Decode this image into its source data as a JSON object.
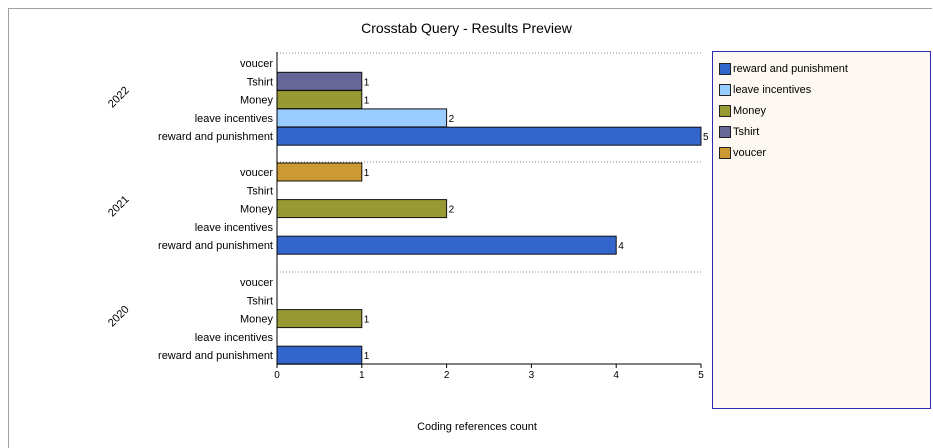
{
  "chart_data": {
    "type": "bar",
    "orientation": "horizontal",
    "title": "Crosstab Query - Results Preview",
    "xlabel": "Coding references count",
    "xlim": [
      0,
      5
    ],
    "xticks": [
      "0",
      "1",
      "2",
      "3",
      "4",
      "5"
    ],
    "groups": [
      {
        "name": "2022",
        "bars": [
          {
            "category": "voucer",
            "value": 0
          },
          {
            "category": "Tshirt",
            "value": 1
          },
          {
            "category": "Money",
            "value": 1
          },
          {
            "category": "leave incentives",
            "value": 2
          },
          {
            "category": "reward and punishment",
            "value": 5
          }
        ]
      },
      {
        "name": "2021",
        "bars": [
          {
            "category": "voucer",
            "value": 1
          },
          {
            "category": "Tshirt",
            "value": 0
          },
          {
            "category": "Money",
            "value": 2
          },
          {
            "category": "leave incentives",
            "value": 0
          },
          {
            "category": "reward and punishment",
            "value": 4
          }
        ]
      },
      {
        "name": "2020",
        "bars": [
          {
            "category": "voucer",
            "value": 0
          },
          {
            "category": "Tshirt",
            "value": 0
          },
          {
            "category": "Money",
            "value": 1
          },
          {
            "category": "leave incentives",
            "value": 0
          },
          {
            "category": "reward and punishment",
            "value": 1
          }
        ]
      }
    ],
    "legend": [
      {
        "name": "reward and punishment",
        "color": "#3366cc"
      },
      {
        "name": "leave incentives",
        "color": "#99ccff"
      },
      {
        "name": "Money",
        "color": "#999933"
      },
      {
        "name": "Tshirt",
        "color": "#666699"
      },
      {
        "name": "voucer",
        "color": "#cc9933"
      }
    ],
    "legend_placement": "right",
    "grid": "dotted separators between groups"
  }
}
